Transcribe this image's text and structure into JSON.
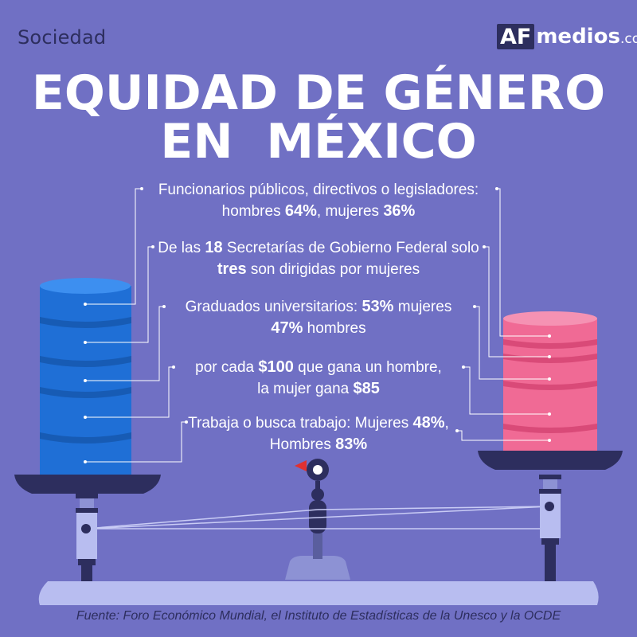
{
  "header": {
    "category": "Sociedad",
    "logo_box": "AF",
    "logo_word": "medios",
    "logo_domain": ".com"
  },
  "title": {
    "line1": "EQUIDAD DE GÉNERO",
    "line2": "EN  MÉXICO"
  },
  "stats": [
    {
      "l1a": "Funcionarios públicos, directivos o legisladores:",
      "l2a": "hombres ",
      "l2b": "64%",
      "l2c": ", mujeres ",
      "l2d": "36%"
    },
    {
      "l1a": "De las ",
      "l1b": "18",
      "l1c": " Secretarías de Gobierno Federal solo",
      "l2a": "tres",
      "l2b": " son dirigidas por mujeres"
    },
    {
      "l1a": "Graduados universitarios: ",
      "l1b": "53%",
      "l1c": " mujeres",
      "l2a": "47%",
      "l2b": " hombres"
    },
    {
      "l1a": "por cada ",
      "l1b": "$100",
      "l1c": " que gana un hombre,",
      "l2a": "la mujer gana ",
      "l2b": "$85"
    },
    {
      "l1a": "Trabaja o busca trabajo: Mujeres ",
      "l1b": "48%",
      "l1c": ",",
      "l2a": "Hombres ",
      "l2b": "83%"
    }
  ],
  "source": "Fuente: Foro Económico Mundial, el Instituto de Estadísticas de la Unesco y la OCDE",
  "colors": {
    "background": "#7070c4",
    "men_stack": "#1f6fd6",
    "women_stack": "#f06a95",
    "dark": "#2d2e5e",
    "scale_base": "#b8bdf0"
  }
}
